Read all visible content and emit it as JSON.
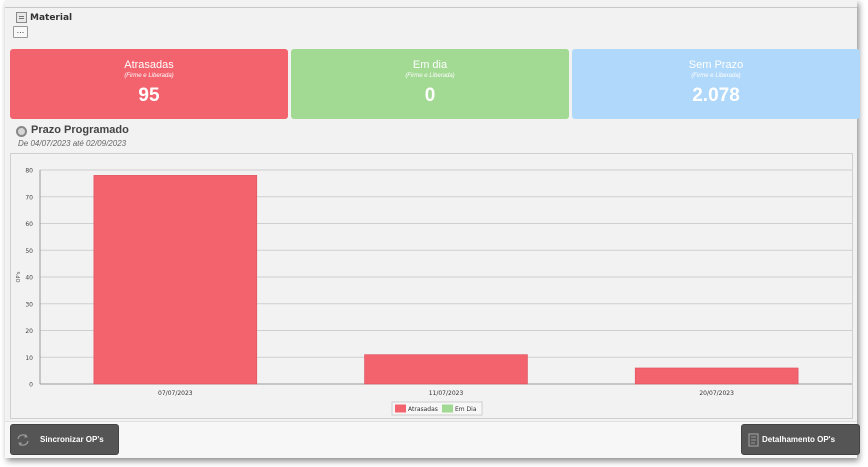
{
  "material": {
    "label": "Material",
    "button_label": "..."
  },
  "cards": [
    {
      "title": "Atrasadas",
      "subtitle": "(Firme e Liberada)",
      "value": "95",
      "color": "#f2636d"
    },
    {
      "title": "Em dia",
      "subtitle": "(Firme e Liberada)",
      "value": "0",
      "color": "#a2d993"
    },
    {
      "title": "Sem Prazo",
      "subtitle": "(Firme e Liberada)",
      "value": "2.078",
      "color": "#b0d8fa"
    }
  ],
  "section": {
    "title": "Prazo Programado",
    "subtitle": "De 04/07/2023 até 02/09/2023"
  },
  "chart_data": {
    "type": "bar",
    "categories": [
      "07/07/2023",
      "11/07/2023",
      "20/07/2023"
    ],
    "series": [
      {
        "name": "Atrasadas",
        "values": [
          78,
          11,
          6
        ],
        "color": "#f2636d"
      },
      {
        "name": "Em Dia",
        "values": [
          0,
          0,
          0
        ],
        "color": "#a2d993"
      }
    ],
    "ylabel": "OP's",
    "ylim": [
      0,
      80
    ],
    "yticks": [
      0,
      10,
      20,
      30,
      40,
      50,
      60,
      70,
      80
    ],
    "grid": true,
    "legend": "bottom-center"
  },
  "buttons": {
    "sync_label": "Sincronizar OP's",
    "detail_label": "Detalhamento OP's"
  }
}
